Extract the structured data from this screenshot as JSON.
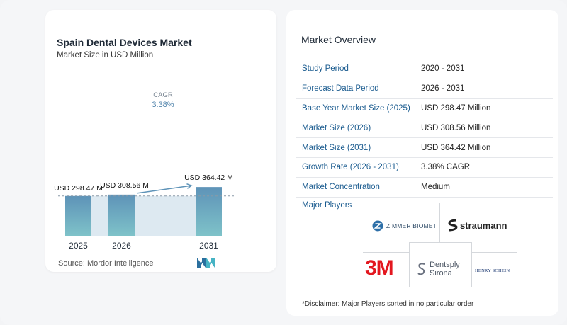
{
  "header": {
    "title": "Spain Dental Devices Market",
    "subtitle": "Market Size in USD Million"
  },
  "chart_data": {
    "type": "bar",
    "title": "Spain Dental Devices Market",
    "subtitle": "Market Size in USD Million",
    "categories": [
      "2025",
      "2026",
      "2031"
    ],
    "values": [
      298.47,
      308.56,
      364.42
    ],
    "value_labels": [
      "USD 298.47 M",
      "USD 308.56 M",
      "USD 364.42 M"
    ],
    "ylim": [
      0,
      400
    ],
    "grid": false,
    "annotations": {
      "cagr_label": "CAGR",
      "cagr_value": "3.38%"
    },
    "bar_color_top": "#5e93b8",
    "bar_color_bottom": "#7fc3c9",
    "gap_fill": "#dde9f1"
  },
  "source": "Source:  Mordor Intelligence",
  "overview": {
    "title": "Market Overview",
    "rows": [
      {
        "label": "Study Period",
        "value": "2020 - 2031"
      },
      {
        "label": "Forecast Data Period",
        "value": "2026 - 2031"
      },
      {
        "label": "Base Year Market Size (2025)",
        "value": "USD 298.47 Million"
      },
      {
        "label": "Market Size (2026)",
        "value": "USD 308.56 Million"
      },
      {
        "label": "Market Size (2031)",
        "value": "USD 364.42 Million"
      },
      {
        "label": "Growth Rate (2026 - 2031)",
        "value": "3.38% CAGR"
      },
      {
        "label": "Market Concentration",
        "value": "Medium"
      }
    ]
  },
  "players": {
    "title": "Major Players",
    "logos": {
      "zimmer": "ZIMMER BIOMET",
      "straumann": "straumann",
      "three_m": "3M",
      "dentsply_line1": "Dentsply",
      "dentsply_line2": "Sirona",
      "henry": "HENRY SCHEIN"
    }
  },
  "disclaimer": "*Disclaimer: Major Players sorted in no particular order"
}
